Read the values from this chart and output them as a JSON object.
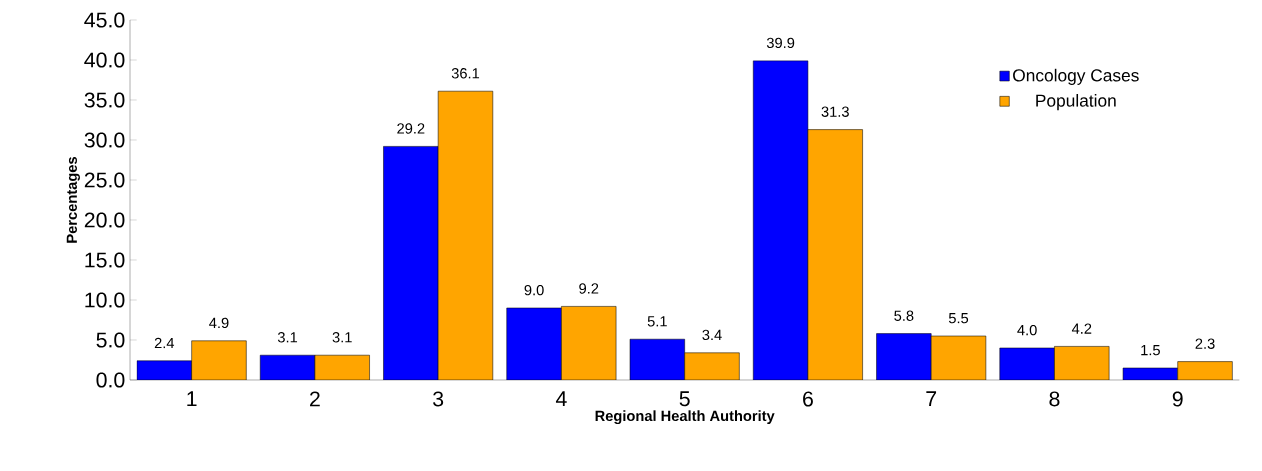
{
  "chart_data": {
    "type": "bar",
    "xlabel": "Regional Health Authority",
    "ylabel": "Percentages",
    "categories": [
      "1",
      "2",
      "3",
      "4",
      "5",
      "6",
      "7",
      "8",
      "9"
    ],
    "series": [
      {
        "name": "Oncology Cases",
        "color": "#0000ff",
        "values": [
          2.4,
          3.1,
          29.2,
          9.0,
          5.1,
          39.9,
          5.8,
          4.0,
          1.5
        ],
        "value_labels": [
          "2.4",
          "3.1",
          "29.2",
          "9.0",
          "5.1",
          "39.9",
          "5.8",
          "4.0",
          "1.5"
        ]
      },
      {
        "name": "Population",
        "color": "#ffa500",
        "values": [
          4.9,
          3.1,
          36.1,
          9.2,
          3.4,
          31.3,
          5.5,
          4.2,
          2.3
        ],
        "value_labels": [
          "4.9",
          "3.1",
          "36.1",
          "9.2",
          "3.4",
          "31.3",
          "5.5",
          "4.2",
          "2.3"
        ]
      }
    ],
    "ylim": [
      0,
      45
    ],
    "yticks": [
      {
        "value": 0,
        "label": "0.0"
      },
      {
        "value": 5,
        "label": "5.0"
      },
      {
        "value": 10,
        "label": "10.0"
      },
      {
        "value": 15,
        "label": "15.0"
      },
      {
        "value": 20,
        "label": "20.0"
      },
      {
        "value": 25,
        "label": "25.0"
      },
      {
        "value": 30,
        "label": "30.0"
      },
      {
        "value": 35,
        "label": "35.0"
      },
      {
        "value": 40,
        "label": "40.0"
      },
      {
        "value": 45,
        "label": "45.0"
      }
    ],
    "legend": "top right",
    "grid": false
  }
}
